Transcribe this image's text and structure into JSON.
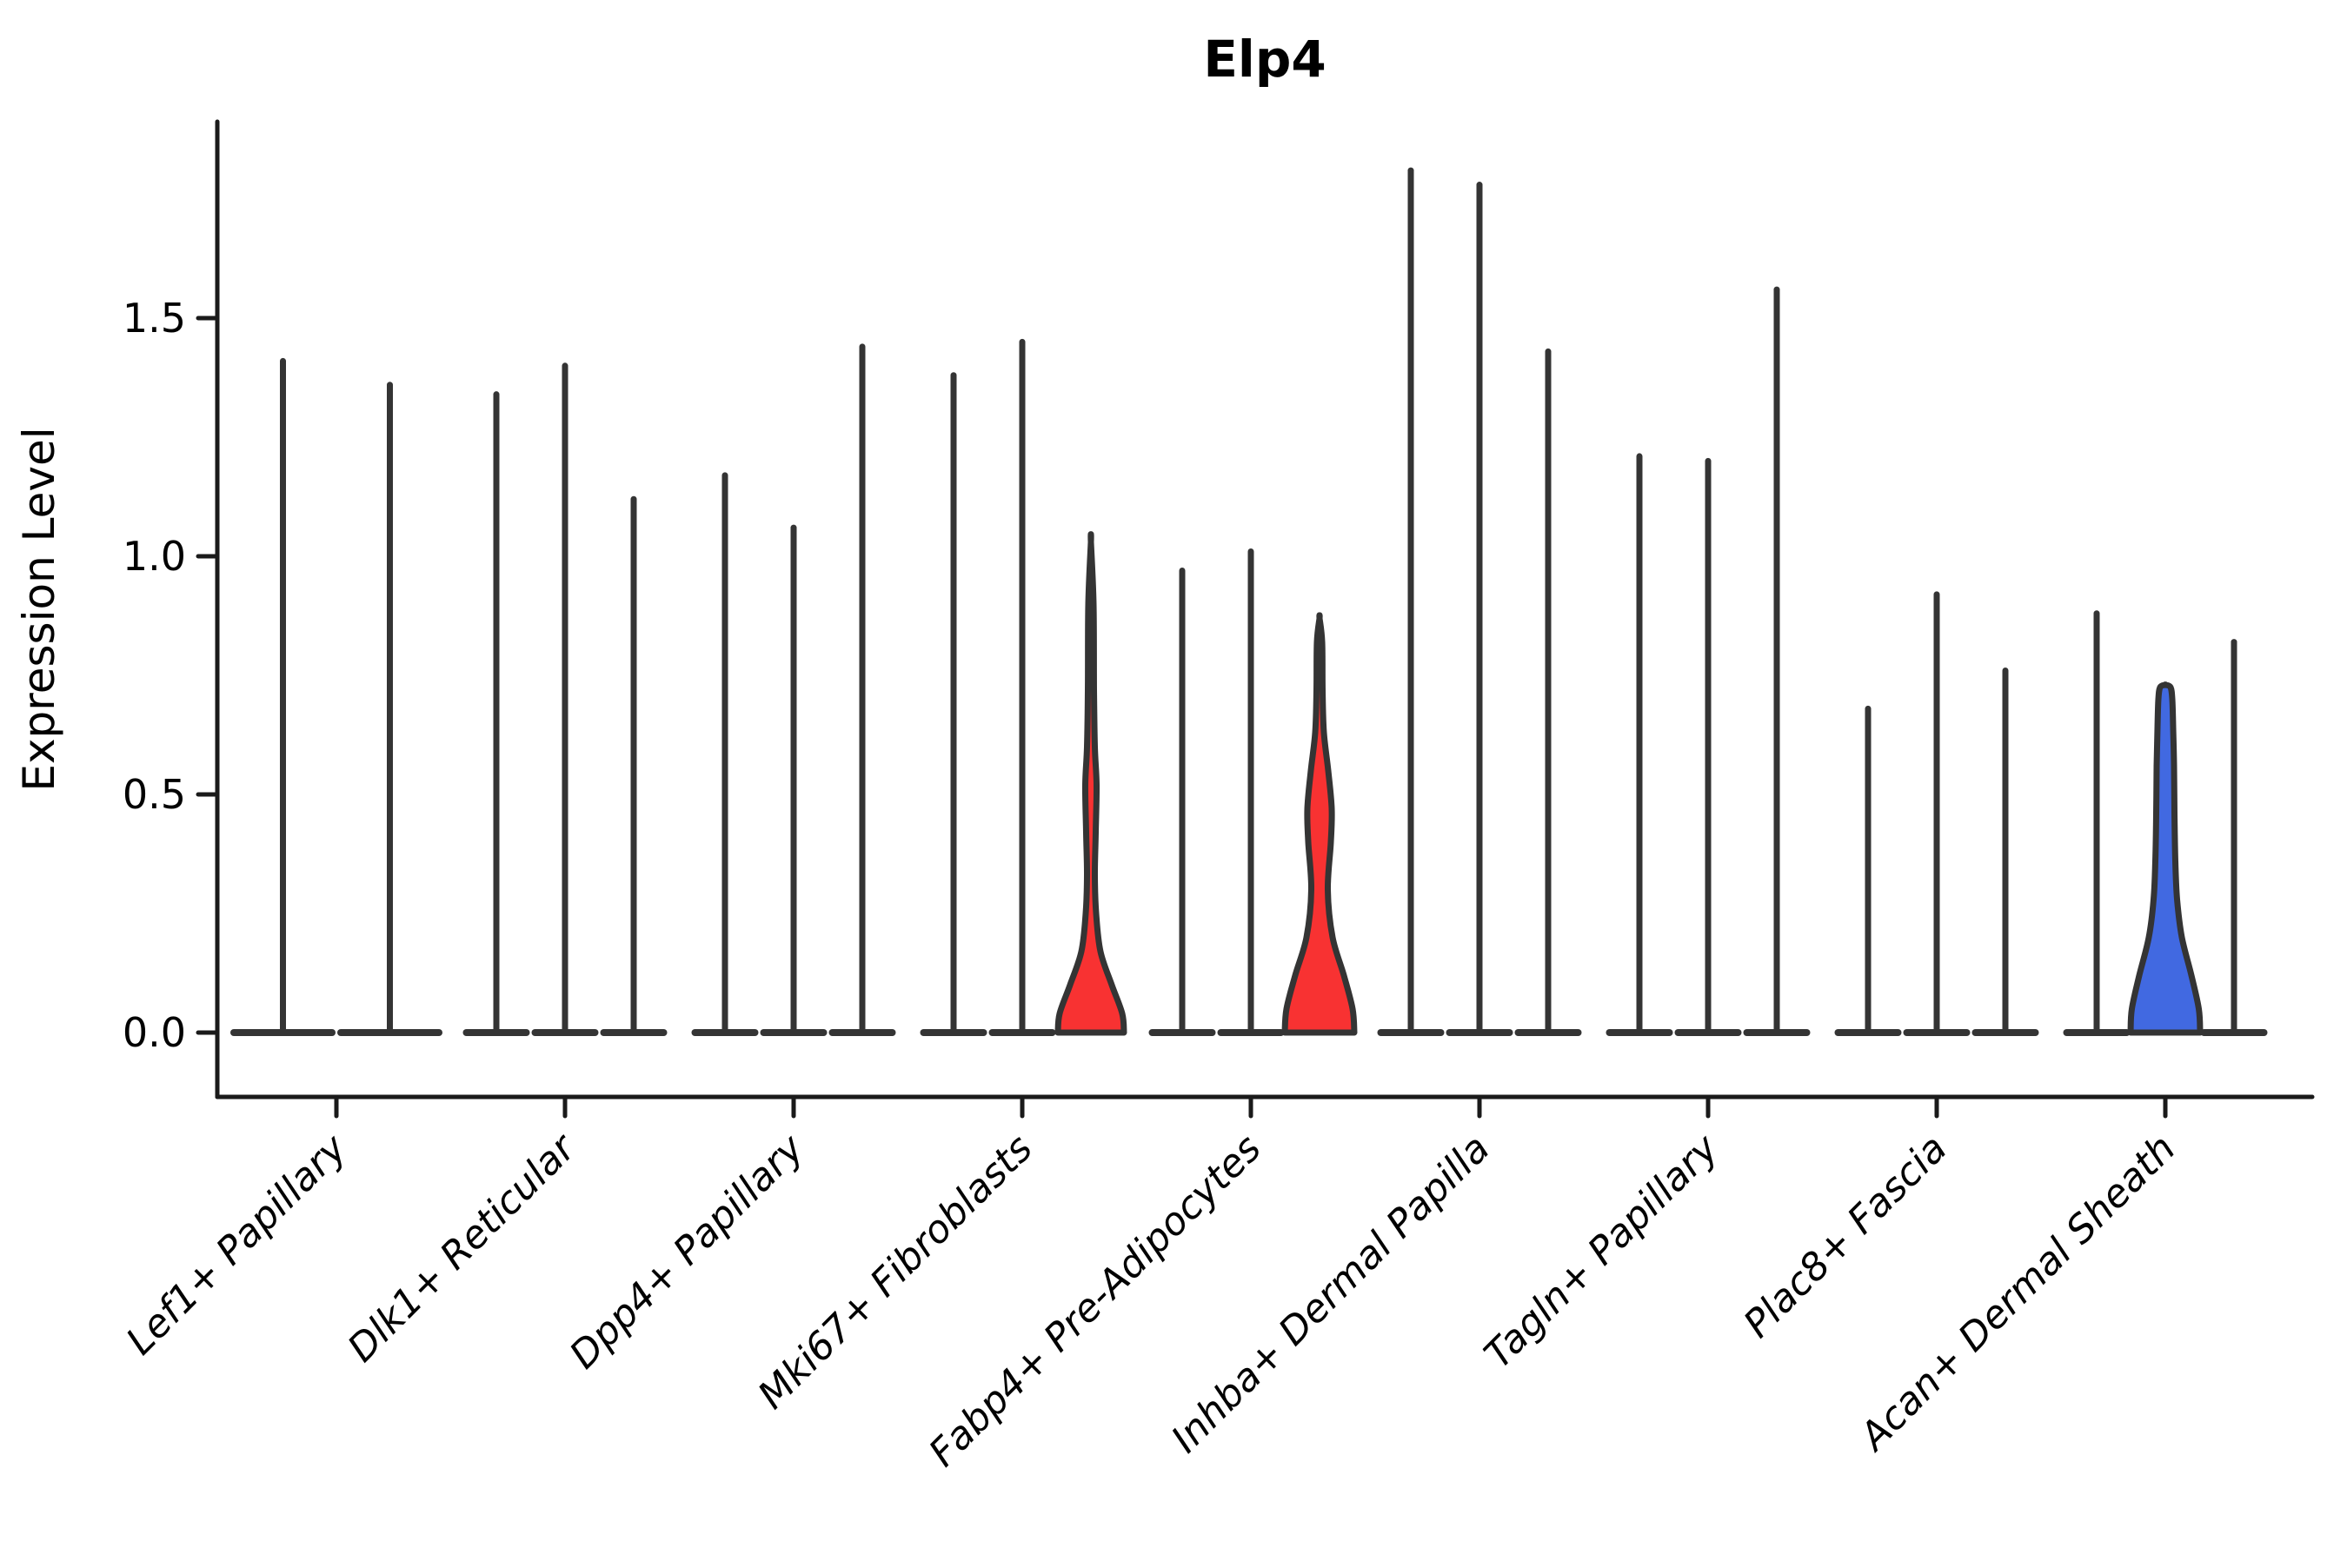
{
  "chart_data": {
    "type": "violin",
    "title": "Elp4",
    "ylabel": "Expression Level",
    "xlabel": "",
    "ylim": [
      -0.09,
      1.9
    ],
    "yticks": [
      "0.0",
      "0.5",
      "1.0",
      "1.5"
    ],
    "ytick_values": [
      0.0,
      0.5,
      1.0,
      1.5
    ],
    "grid": false,
    "legend_position": "none",
    "colors": {
      "violin_stroke": "#343434",
      "axis": "#1a1a1a",
      "highlight_red": "#F83232",
      "highlight_blue": "#4169E1"
    },
    "categories": [
      "Lef1+ Papillary",
      "Dlk1+ Reticular",
      "Dpp4+ Papillary",
      "Mki67+ Fibroblasts",
      "Fabp4+ Pre-Adipocytes",
      "Inhba+ Dermal Papilla",
      "Tagln+ Papillary",
      "Plac8+ Fascia",
      "Acan+ Dermal Sheath"
    ],
    "groups": [
      {
        "label": "Lef1+ Papillary",
        "violins": [
          {
            "max": 1.41
          },
          {
            "max": 1.36
          }
        ]
      },
      {
        "label": "Dlk1+ Reticular",
        "violins": [
          {
            "max": 1.34
          },
          {
            "max": 1.4
          },
          {
            "max": 1.12
          }
        ]
      },
      {
        "label": "Dpp4+ Papillary",
        "violins": [
          {
            "max": 1.17
          },
          {
            "max": 1.06
          },
          {
            "max": 1.44
          }
        ]
      },
      {
        "label": "Mki67+ Fibroblasts",
        "violins": [
          {
            "max": 1.38
          },
          {
            "max": 1.45
          },
          {
            "max": 1.03,
            "fill": "#F83232",
            "profile": [
              [
                0,
                38
              ],
              [
                0.04,
                36
              ],
              [
                0.1,
                24
              ],
              [
                0.17,
                11
              ],
              [
                0.25,
                6
              ],
              [
                0.33,
                4.5
              ],
              [
                0.42,
                5.5
              ],
              [
                0.52,
                6.5
              ],
              [
                0.6,
                4.5
              ],
              [
                0.72,
                3.5
              ],
              [
                0.9,
                3
              ],
              [
                1.03,
                0
              ]
            ]
          }
        ]
      },
      {
        "label": "Fabp4+ Pre-Adipocytes",
        "violins": [
          {
            "max": 0.97
          },
          {
            "max": 1.01
          },
          {
            "max": 0.87,
            "fill": "#F83232",
            "profile": [
              [
                0,
                40
              ],
              [
                0.05,
                38
              ],
              [
                0.12,
                28
              ],
              [
                0.2,
                15
              ],
              [
                0.3,
                9.5
              ],
              [
                0.4,
                13
              ],
              [
                0.47,
                14
              ],
              [
                0.55,
                10
              ],
              [
                0.63,
                5
              ],
              [
                0.72,
                3.5
              ],
              [
                0.82,
                3
              ],
              [
                0.87,
                0
              ]
            ]
          }
        ]
      },
      {
        "label": "Inhba+ Dermal Papilla",
        "violins": [
          {
            "max": 1.81
          },
          {
            "max": 1.78
          },
          {
            "max": 1.43
          }
        ]
      },
      {
        "label": "Tagln+ Papillary",
        "violins": [
          {
            "max": 1.21
          },
          {
            "max": 1.2
          },
          {
            "max": 1.56
          }
        ]
      },
      {
        "label": "Plac8+ Fascia",
        "violins": [
          {
            "max": 0.68
          },
          {
            "max": 0.92
          },
          {
            "max": 0.76
          }
        ]
      },
      {
        "label": "Acan+ Dermal Sheath",
        "violins": [
          {
            "max": 0.88
          },
          {
            "max": 0.73,
            "fill": "#4169E1",
            "profile": [
              [
                0,
                40
              ],
              [
                0.05,
                38.5
              ],
              [
                0.12,
                30
              ],
              [
                0.2,
                19
              ],
              [
                0.28,
                13.5
              ],
              [
                0.36,
                11.5
              ],
              [
                0.46,
                10.5
              ],
              [
                0.56,
                10
              ],
              [
                0.64,
                9
              ],
              [
                0.7,
                8
              ],
              [
                0.725,
                6
              ],
              [
                0.73,
                0
              ]
            ]
          },
          {
            "max": 0.82
          }
        ]
      }
    ]
  }
}
